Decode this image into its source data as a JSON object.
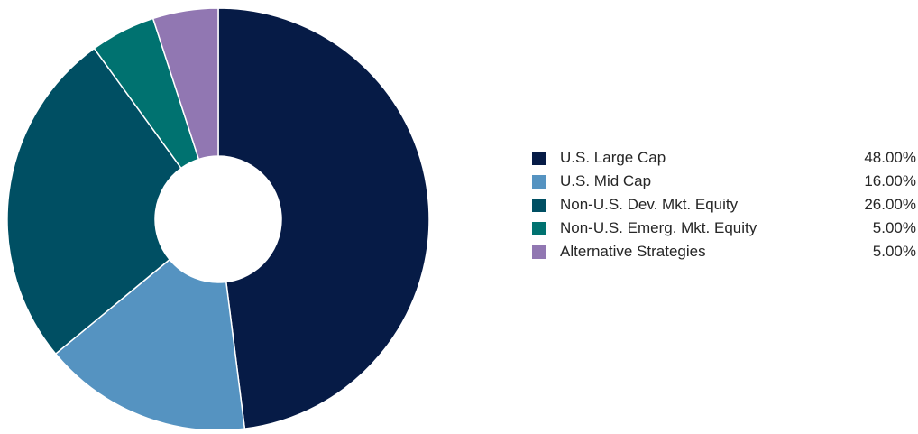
{
  "chart_data": {
    "type": "pie",
    "donut": true,
    "categories": [
      "U.S. Large Cap",
      "U.S. Mid Cap",
      "Non-U.S. Dev. Mkt. Equity",
      "Non-U.S. Emerg. Mkt. Equity",
      "Alternative Strategies"
    ],
    "values": [
      48,
      16,
      26,
      5,
      5
    ],
    "value_labels": [
      "48.00%",
      "16.00%",
      "26.00%",
      "5.00%",
      "5.00%"
    ],
    "colors": [
      "#061b46",
      "#5593c1",
      "#004f63",
      "#007270",
      "#9177b2"
    ],
    "legend_position": "right"
  }
}
